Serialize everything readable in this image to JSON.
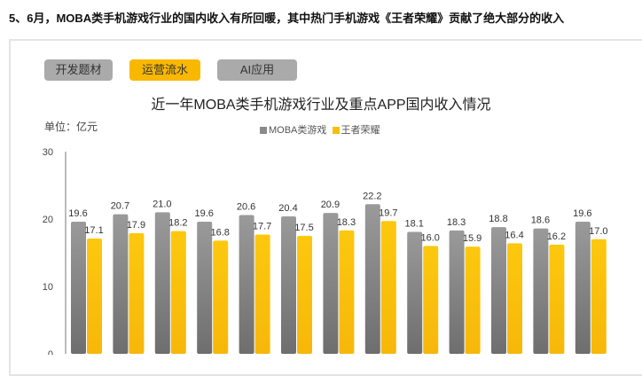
{
  "headline": "5、6月，MOBA类手机游戏行业的国内收入有所回暖，其中热门手机游戏《王者荣耀》贡献了绝大部分的收入",
  "tabs": [
    {
      "label": "开发题材",
      "active": false
    },
    {
      "label": "运营流水",
      "active": true
    },
    {
      "label": "AI应用",
      "active": false
    }
  ],
  "colors": {
    "moba": "#8a8a8a",
    "wzry": "#f9be0a",
    "active_tab": "#f9b800",
    "tab": "#aaaaaa"
  },
  "chart_data": {
    "type": "bar",
    "title": "近一年MOBA类手机游戏行业及重点APP国内收入情况",
    "unit_label": "单位：亿元",
    "ylim": [
      0,
      30
    ],
    "yticks": [
      "0",
      "10",
      "20",
      "30"
    ],
    "legend_position": "top-center",
    "series": [
      {
        "name": "MOBA类游戏",
        "values": [
          19.6,
          20.7,
          21.0,
          19.6,
          20.6,
          20.4,
          20.9,
          22.2,
          18.1,
          18.3,
          18.8,
          18.6,
          19.6
        ],
        "labels": [
          "19.6",
          "20.7",
          "21.0",
          "19.6",
          "20.6",
          "20.4",
          "20.9",
          "22.2",
          "18.1",
          "18.3",
          "18.8",
          "18.6",
          "19.6"
        ]
      },
      {
        "name": "王者荣耀",
        "values": [
          17.1,
          17.9,
          18.2,
          16.8,
          17.7,
          17.5,
          18.3,
          19.7,
          16.0,
          15.9,
          16.4,
          16.2,
          17.0
        ],
        "labels": [
          "17.1",
          "17.9",
          "18.2",
          "16.8",
          "17.7",
          "17.5",
          "18.3",
          "19.7",
          "16.0",
          "15.9",
          "16.4",
          "16.2",
          "17.0"
        ]
      }
    ]
  }
}
